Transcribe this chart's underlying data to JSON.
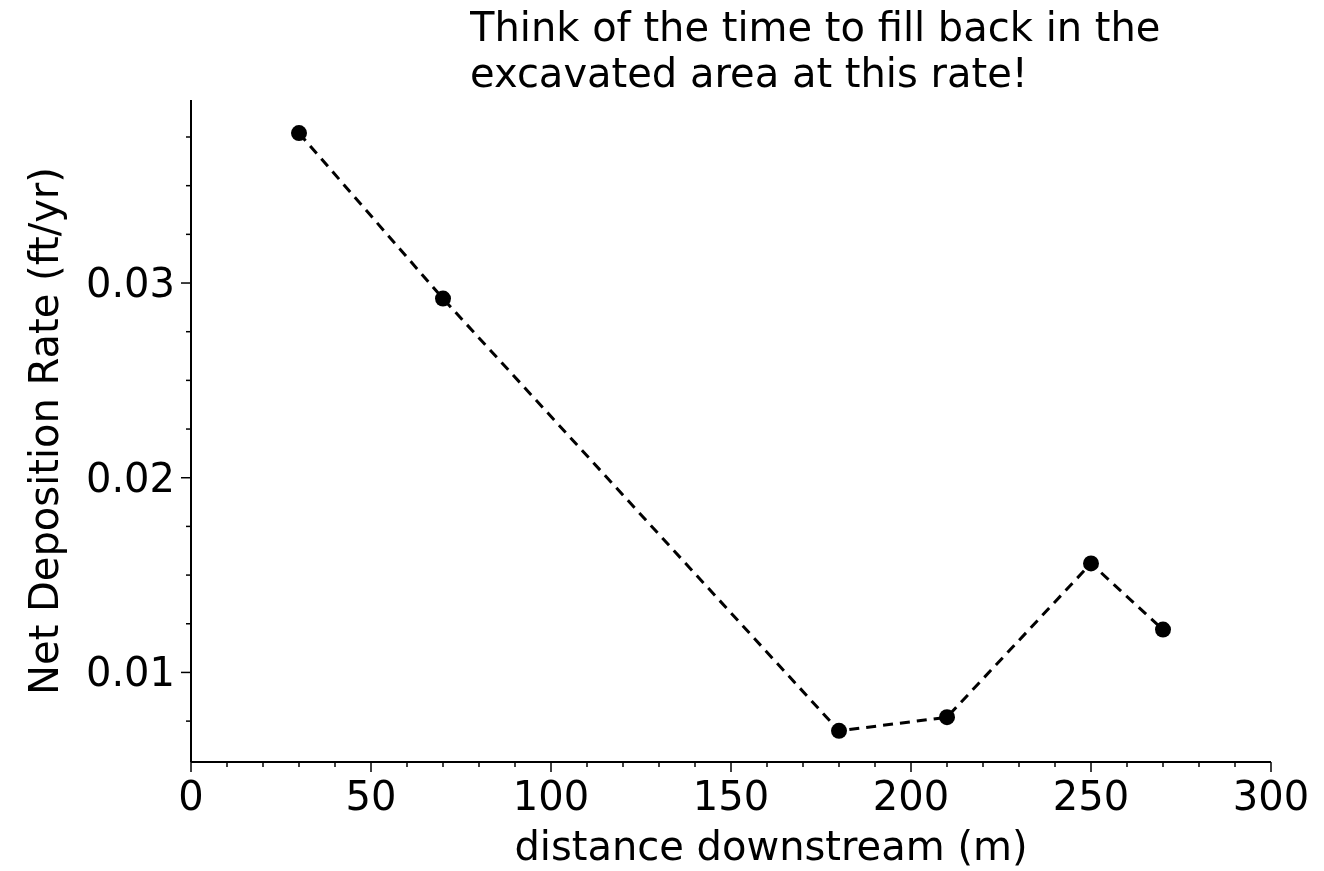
{
  "chart_data": {
    "type": "line",
    "annotations": [
      "Think of the time to fill back in the excavated area at this rate!"
    ],
    "xlabel": "distance downstream (m)",
    "ylabel": "Net Deposition Rate (ft/yr)",
    "x": [
      30,
      70,
      180,
      210,
      250,
      270
    ],
    "series": [
      {
        "color": "#000000",
        "values": [
          0.0377,
          0.0292,
          0.007,
          0.0077,
          0.0156,
          0.0122
        ]
      }
    ],
    "xlim": [
      0,
      300
    ],
    "ylim": [
      0.0054,
      0.0394
    ],
    "xticks": [
      0,
      {
        "value": 10,
        "label": null
      },
      {
        "value": 20,
        "label": null
      },
      {
        "value": 30,
        "label": null
      },
      {
        "value": 40,
        "label": null
      },
      50,
      {
        "value": 60,
        "label": null
      },
      {
        "value": 70,
        "label": null
      },
      {
        "value": 80,
        "label": null
      },
      {
        "value": 90,
        "label": null
      },
      100,
      {
        "value": 110,
        "label": null
      },
      {
        "value": 120,
        "label": null
      },
      {
        "value": 130,
        "label": null
      },
      {
        "value": 140,
        "label": null
      },
      150,
      {
        "value": 160,
        "label": null
      },
      {
        "value": 170,
        "label": null
      },
      {
        "value": 180,
        "label": null
      },
      {
        "value": 190,
        "label": null
      },
      200,
      {
        "value": 210,
        "label": null
      },
      {
        "value": 220,
        "label": null
      },
      {
        "value": 230,
        "label": null
      },
      {
        "value": 240,
        "label": null
      },
      250,
      {
        "value": 260,
        "label": null
      },
      {
        "value": 270,
        "label": null
      },
      {
        "value": 280,
        "label": null
      },
      {
        "value": 290,
        "label": null
      },
      300
    ],
    "yticks": [
      {
        "value": 0.0075,
        "label": null
      },
      0.01,
      {
        "value": 0.0125,
        "label": null
      },
      {
        "value": 0.015,
        "label": null
      },
      {
        "value": 0.0175,
        "label": null
      },
      0.02,
      {
        "value": 0.0225,
        "label": null
      },
      {
        "value": 0.025,
        "label": null
      },
      {
        "value": 0.0275,
        "label": null
      },
      0.03,
      {
        "value": 0.0325,
        "label": null
      },
      {
        "value": 0.035,
        "label": null
      },
      {
        "value": 0.0375,
        "label": null
      }
    ],
    "grid": false,
    "marker": "circle",
    "line_style": "dashed"
  }
}
